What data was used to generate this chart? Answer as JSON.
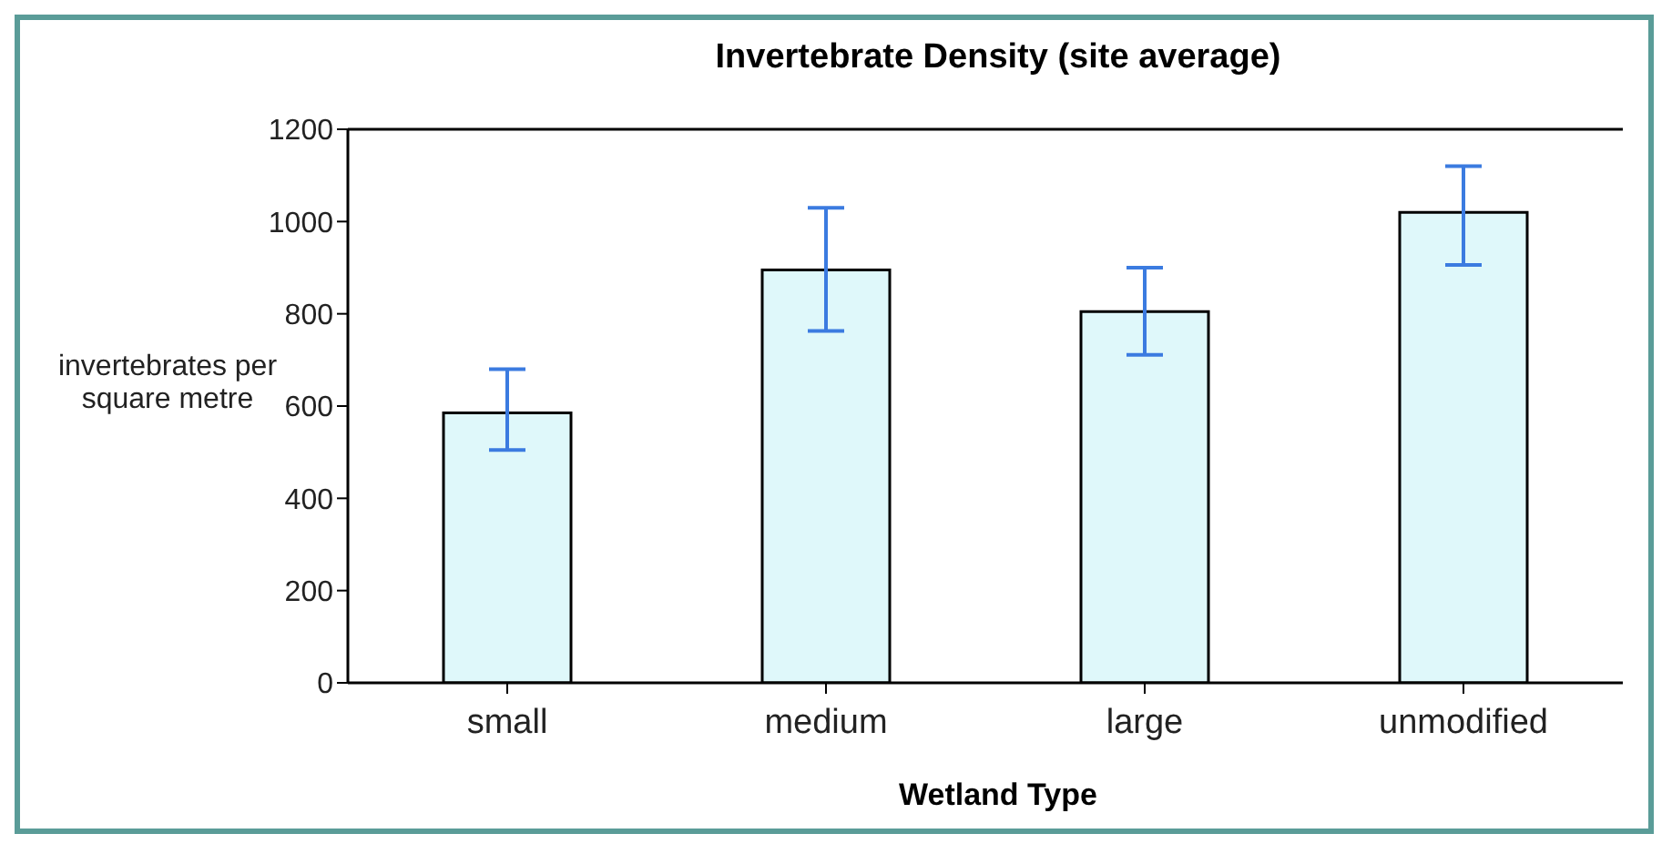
{
  "chart_data": {
    "type": "bar",
    "title": "Invertebrate Density (site average)",
    "xlabel": "Wetland Type",
    "ylabel": "invertebrates per square metre",
    "categories": [
      "small",
      "medium",
      "large",
      "unmodified"
    ],
    "values": [
      585,
      895,
      805,
      1020
    ],
    "errors": [
      [
        505,
        680
      ],
      [
        763,
        1030
      ],
      [
        711,
        900
      ],
      [
        906,
        1120
      ]
    ],
    "color": "#dff8fa",
    "ylim": [
      0,
      1200
    ],
    "yticks": [
      0,
      200,
      400,
      600,
      800,
      1000,
      1200
    ],
    "grid": false,
    "legend": false
  }
}
